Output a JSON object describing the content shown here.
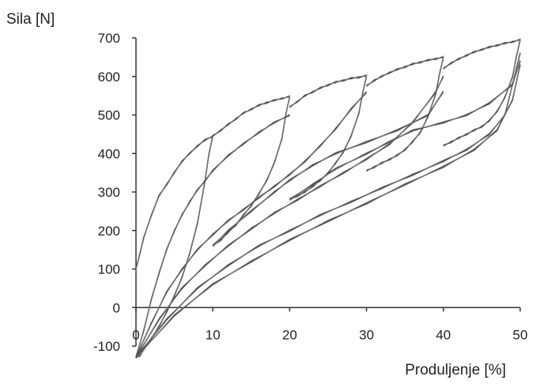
{
  "chart_data": {
    "type": "line",
    "title": "",
    "xlabel": "Produljenje [%]",
    "ylabel": "Sila [N]",
    "xlim": [
      0,
      50
    ],
    "ylim": [
      -100,
      700
    ],
    "xticks": [
      0,
      10,
      20,
      30,
      40,
      50
    ],
    "yticks": [
      -100,
      0,
      100,
      200,
      300,
      400,
      500,
      600,
      700
    ],
    "grid": false,
    "legend": "none",
    "line_color": "#333333",
    "series": [
      {
        "x": [
          0,
          0.5,
          1,
          2,
          3,
          4,
          5,
          6,
          7,
          8,
          9,
          10,
          10,
          9.5,
          9,
          8,
          7,
          6,
          5,
          4,
          3,
          2,
          1,
          0.5,
          0
        ],
        "y": [
          100,
          140,
          180,
          240,
          290,
          320,
          350,
          380,
          400,
          420,
          435,
          445,
          445,
          400,
          330,
          220,
          140,
          80,
          30,
          -10,
          -50,
          -80,
          -110,
          -125,
          -130
        ]
      },
      {
        "x": [
          10,
          11,
          12,
          13,
          14,
          15,
          16,
          17,
          18,
          19,
          20,
          20,
          19.5,
          19,
          18,
          17,
          16,
          15,
          14,
          13,
          12,
          11,
          10
        ],
        "y": [
          445,
          460,
          475,
          490,
          505,
          515,
          525,
          532,
          538,
          543,
          548,
          548,
          500,
          440,
          375,
          330,
          295,
          265,
          240,
          215,
          195,
          175,
          160
        ]
      },
      {
        "x": [
          20,
          21,
          22,
          23,
          24,
          25,
          26,
          27,
          28,
          29,
          30,
          30,
          29.5,
          29,
          28,
          27,
          26,
          25,
          24,
          23,
          22,
          21,
          20
        ],
        "y": [
          520,
          535,
          550,
          560,
          570,
          578,
          585,
          590,
          595,
          598,
          602,
          602,
          555,
          505,
          445,
          405,
          375,
          350,
          330,
          315,
          300,
          290,
          280
        ]
      },
      {
        "x": [
          30,
          31,
          32,
          33,
          34,
          35,
          36,
          37,
          38,
          39,
          40,
          40,
          39.5,
          39,
          38,
          37,
          36,
          35,
          34,
          33,
          32,
          31,
          30
        ],
        "y": [
          575,
          590,
          600,
          610,
          618,
          625,
          632,
          637,
          642,
          646,
          650,
          650,
          605,
          555,
          495,
          455,
          430,
          410,
          395,
          385,
          375,
          365,
          355
        ]
      },
      {
        "x": [
          40,
          41,
          42,
          43,
          44,
          45,
          46,
          47,
          48,
          49,
          50,
          50,
          49.5,
          49,
          48,
          47,
          46,
          45,
          44,
          43,
          42,
          41,
          40
        ],
        "y": [
          620,
          635,
          645,
          655,
          663,
          670,
          676,
          681,
          686,
          690,
          695,
          695,
          650,
          600,
          545,
          510,
          485,
          470,
          460,
          450,
          440,
          430,
          420
        ]
      },
      {
        "x": [
          0,
          1,
          2,
          3,
          4,
          5,
          6,
          7,
          8,
          9,
          10,
          12,
          14,
          16,
          18,
          20
        ],
        "y": [
          -130,
          -60,
          20,
          90,
          150,
          200,
          240,
          275,
          305,
          330,
          355,
          395,
          425,
          455,
          480,
          500
        ]
      },
      {
        "x": [
          0,
          2,
          4,
          6,
          8,
          10,
          12,
          14,
          16,
          18,
          20,
          22,
          24,
          26,
          28,
          30
        ],
        "y": [
          -130,
          -40,
          40,
          100,
          150,
          190,
          225,
          255,
          285,
          315,
          345,
          380,
          420,
          465,
          515,
          560
        ]
      },
      {
        "x": [
          0,
          3,
          6,
          9,
          12,
          15,
          18,
          21,
          24,
          27,
          30,
          33,
          36,
          39,
          40
        ],
        "y": [
          -130,
          -30,
          50,
          110,
          160,
          205,
          245,
          280,
          315,
          350,
          385,
          425,
          480,
          560,
          600
        ]
      },
      {
        "x": [
          0,
          4,
          8,
          12,
          16,
          20,
          24,
          28,
          32,
          36,
          40,
          43,
          46,
          48,
          50
        ],
        "y": [
          -130,
          -30,
          50,
          110,
          160,
          200,
          240,
          275,
          310,
          345,
          380,
          410,
          450,
          500,
          660
        ]
      },
      {
        "x": [
          0,
          5,
          10,
          15,
          20,
          25,
          30,
          35,
          40,
          44,
          47,
          49,
          50
        ],
        "y": [
          -130,
          -20,
          60,
          120,
          175,
          225,
          270,
          320,
          365,
          410,
          460,
          540,
          630
        ]
      },
      {
        "x": [
          10,
          12,
          15,
          18,
          20,
          23,
          26,
          30,
          34,
          38,
          40
        ],
        "y": [
          160,
          200,
          250,
          300,
          330,
          370,
          400,
          430,
          460,
          500,
          560
        ]
      },
      {
        "x": [
          20,
          23,
          26,
          30,
          33,
          36,
          40,
          43,
          46,
          49,
          50
        ],
        "y": [
          280,
          320,
          360,
          400,
          430,
          460,
          480,
          500,
          530,
          580,
          640
        ]
      }
    ]
  }
}
